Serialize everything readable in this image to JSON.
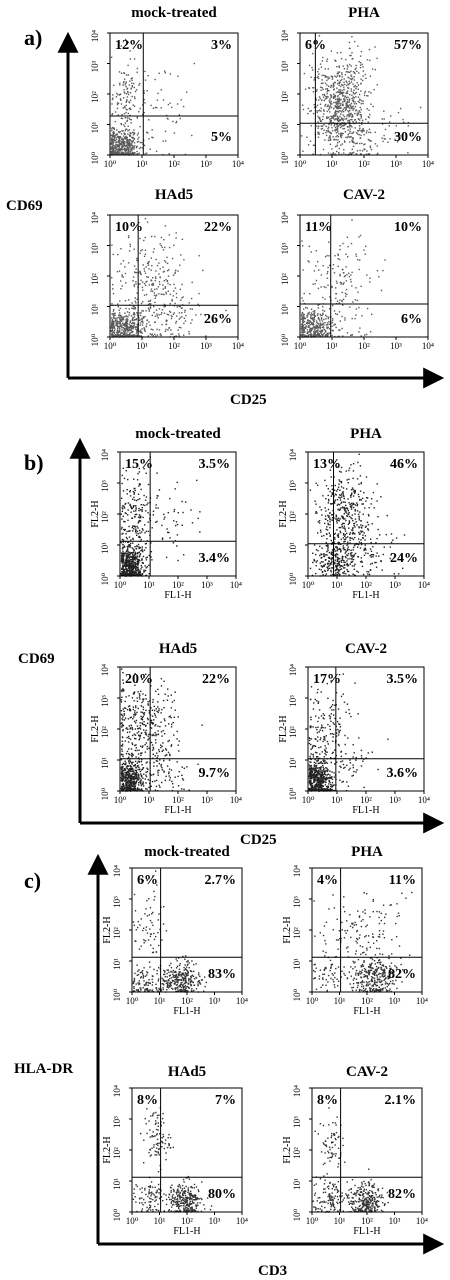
{
  "figure": {
    "panels": [
      {
        "letter": "a)",
        "ylabel": "CD69",
        "xlabel": "CD25",
        "show_fl": false,
        "cells": [
          {
            "title": "mock-treated",
            "quadrants": {
              "ul": "12%",
              "ur": "3%",
              "lr": "5%"
            }
          },
          {
            "title": "PHA",
            "quadrants": {
              "ul": "6%",
              "ur": "57%",
              "lr": "30%"
            }
          },
          {
            "title": "HAd5",
            "quadrants": {
              "ul": "10%",
              "ur": "22%",
              "lr": "26%"
            }
          },
          {
            "title": "CAV-2",
            "quadrants": {
              "ul": "11%",
              "ur": "10%",
              "lr": "6%"
            }
          }
        ]
      },
      {
        "letter": "b)",
        "ylabel": "CD69",
        "xlabel": "CD25",
        "show_fl": true,
        "cells": [
          {
            "title": "mock-treated",
            "quadrants": {
              "ul": "15%",
              "ur": "3.5%",
              "lr": "3.4%"
            }
          },
          {
            "title": "PHA",
            "quadrants": {
              "ul": "13%",
              "ur": "46%",
              "lr": "24%"
            }
          },
          {
            "title": "HAd5",
            "quadrants": {
              "ul": "20%",
              "ur": "22%",
              "lr": "9.7%"
            }
          },
          {
            "title": "CAV-2",
            "quadrants": {
              "ul": "17%",
              "ur": "3.5%",
              "lr": "3.6%"
            }
          }
        ]
      },
      {
        "letter": "c)",
        "ylabel": "HLA-DR",
        "xlabel": "CD3",
        "show_fl": true,
        "cells": [
          {
            "title": "mock-treated",
            "quadrants": {
              "ul": "6%",
              "ur": "2.7%",
              "lr": "83%"
            }
          },
          {
            "title": "PHA",
            "quadrants": {
              "ul": "4%",
              "ur": "11%",
              "lr": "82%"
            }
          },
          {
            "title": "HAd5",
            "quadrants": {
              "ul": "8%",
              "ur": "7%",
              "lr": "80%"
            }
          },
          {
            "title": "CAV-2",
            "quadrants": {
              "ul": "8%",
              "ur": "2.1%",
              "lr": "82%"
            }
          }
        ]
      }
    ],
    "tick_labels": [
      "10⁰",
      "10¹",
      "10²",
      "10³",
      "10⁴"
    ],
    "fl_x": "FL1-H",
    "fl_y": "FL2-H"
  },
  "chart_data": {
    "type": "scatter",
    "subtype": "flow-cytometry-quadrant-dot-plots",
    "axis_scale": "log",
    "xlim": [
      1,
      10000
    ],
    "ylim": [
      1,
      10000
    ],
    "tick_values": [
      1,
      10,
      100,
      1000,
      10000
    ],
    "panels": [
      {
        "panel": "a",
        "x": "CD25",
        "y": "CD69",
        "plots": [
          {
            "name": "mock-treated",
            "upper_left_pct": 12,
            "upper_right_pct": 3,
            "lower_right_pct": 5
          },
          {
            "name": "PHA",
            "upper_left_pct": 6,
            "upper_right_pct": 57,
            "lower_right_pct": 30
          },
          {
            "name": "HAd5",
            "upper_left_pct": 10,
            "upper_right_pct": 22,
            "lower_right_pct": 26
          },
          {
            "name": "CAV-2",
            "upper_left_pct": 11,
            "upper_right_pct": 10,
            "lower_right_pct": 6
          }
        ]
      },
      {
        "panel": "b",
        "x": "CD25",
        "y": "CD69",
        "plots": [
          {
            "name": "mock-treated",
            "upper_left_pct": 15,
            "upper_right_pct": 3.5,
            "lower_right_pct": 3.4
          },
          {
            "name": "PHA",
            "upper_left_pct": 13,
            "upper_right_pct": 46,
            "lower_right_pct": 24
          },
          {
            "name": "HAd5",
            "upper_left_pct": 20,
            "upper_right_pct": 22,
            "lower_right_pct": 9.7
          },
          {
            "name": "CAV-2",
            "upper_left_pct": 17,
            "upper_right_pct": 3.5,
            "lower_right_pct": 3.6
          }
        ]
      },
      {
        "panel": "c",
        "x": "CD3",
        "y": "HLA-DR",
        "plots": [
          {
            "name": "mock-treated",
            "upper_left_pct": 6,
            "upper_right_pct": 2.7,
            "lower_right_pct": 83
          },
          {
            "name": "PHA",
            "upper_left_pct": 4,
            "upper_right_pct": 11,
            "lower_right_pct": 82
          },
          {
            "name": "HAd5",
            "upper_left_pct": 8,
            "upper_right_pct": 7,
            "lower_right_pct": 80
          },
          {
            "name": "CAV-2",
            "upper_left_pct": 8,
            "upper_right_pct": 2.1,
            "lower_right_pct": 82
          }
        ]
      }
    ]
  }
}
